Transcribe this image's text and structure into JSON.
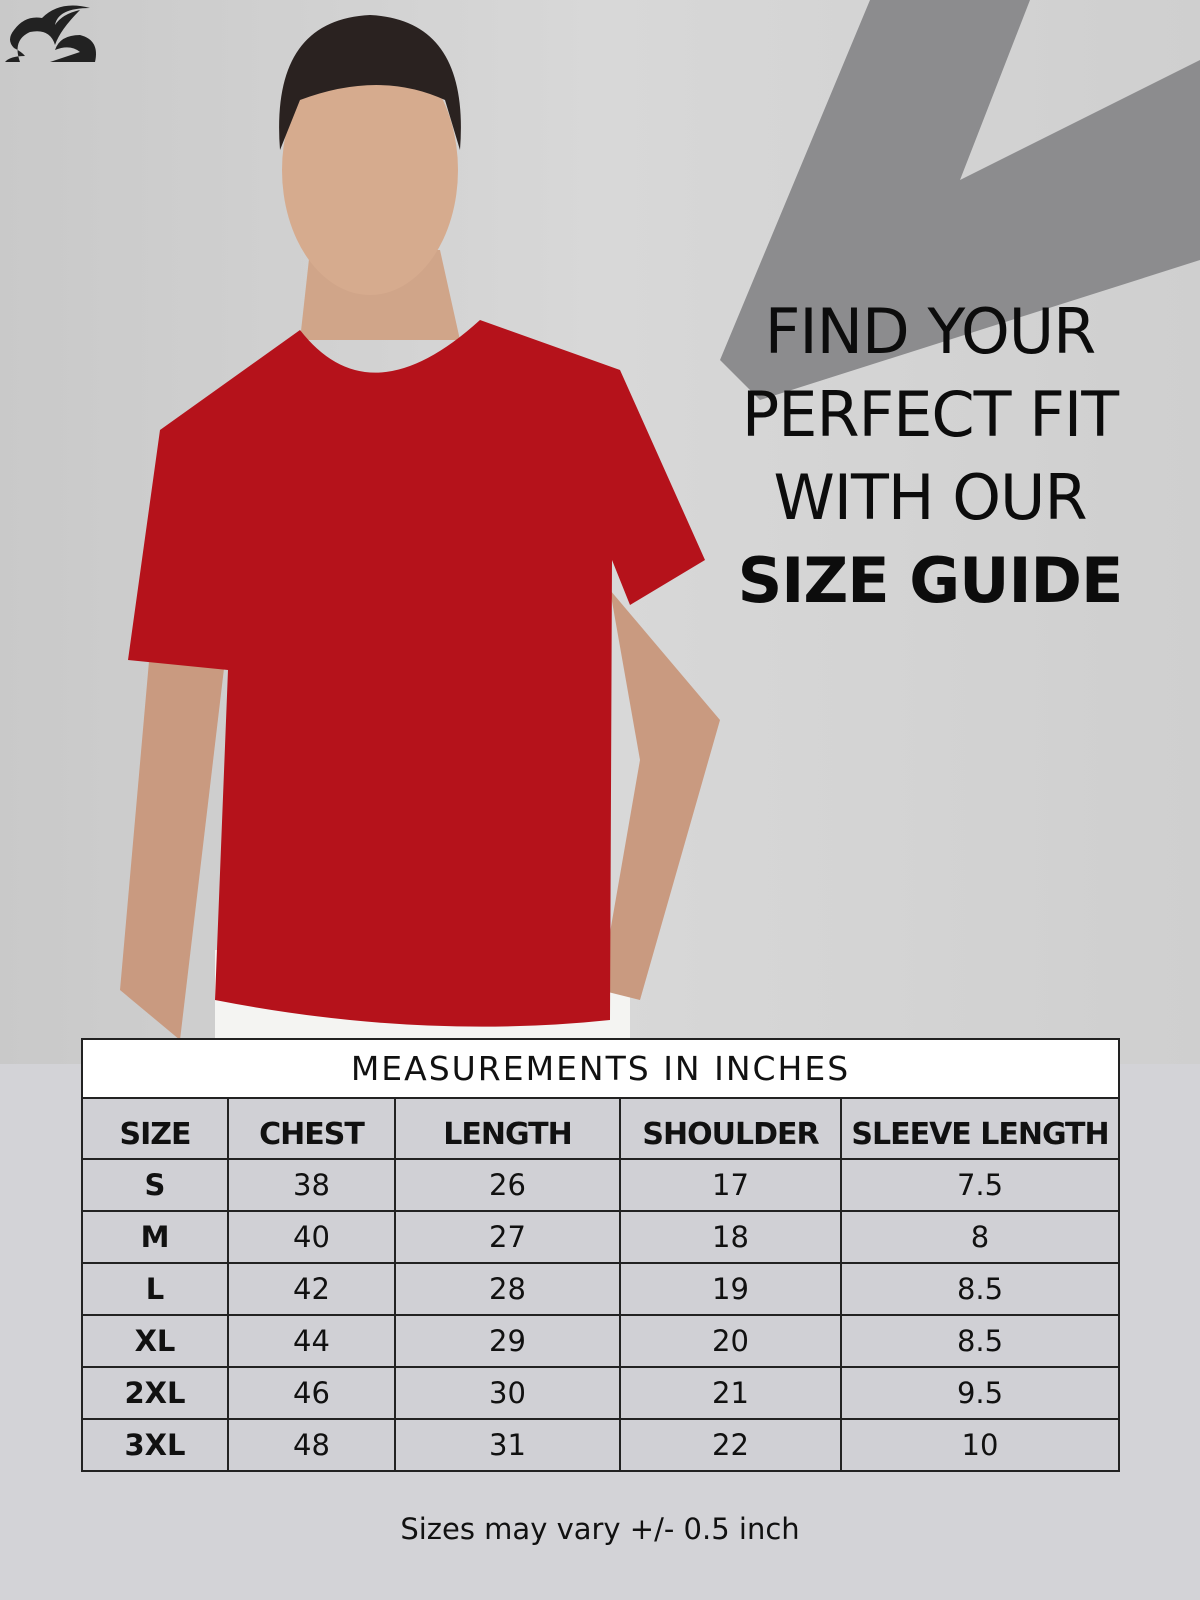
{
  "brand": {
    "logo": "rabbit-logo"
  },
  "headline": {
    "line1": "FIND YOUR",
    "line2": "PERFECT FIT",
    "line3": "WITH OUR",
    "line4": "SIZE GUIDE"
  },
  "table": {
    "title": "MEASUREMENTS IN INCHES",
    "headers": [
      "SIZE",
      "CHEST",
      "LENGTH",
      "SHOULDER",
      "SLEEVE LENGTH"
    ],
    "rows": [
      [
        "S",
        "38",
        "26",
        "17",
        "7.5"
      ],
      [
        "M",
        "40",
        "27",
        "18",
        "8"
      ],
      [
        "L",
        "42",
        "28",
        "19",
        "8.5"
      ],
      [
        "XL",
        "44",
        "29",
        "20",
        "8.5"
      ],
      [
        "2XL",
        "46",
        "30",
        "21",
        "9.5"
      ],
      [
        "3XL",
        "48",
        "31",
        "22",
        "10"
      ]
    ]
  },
  "note": "Sizes may vary +/- 0.5 inch",
  "colors": {
    "shirt": "#b5121b",
    "background": "#d3d3d7",
    "text": "#111111"
  }
}
